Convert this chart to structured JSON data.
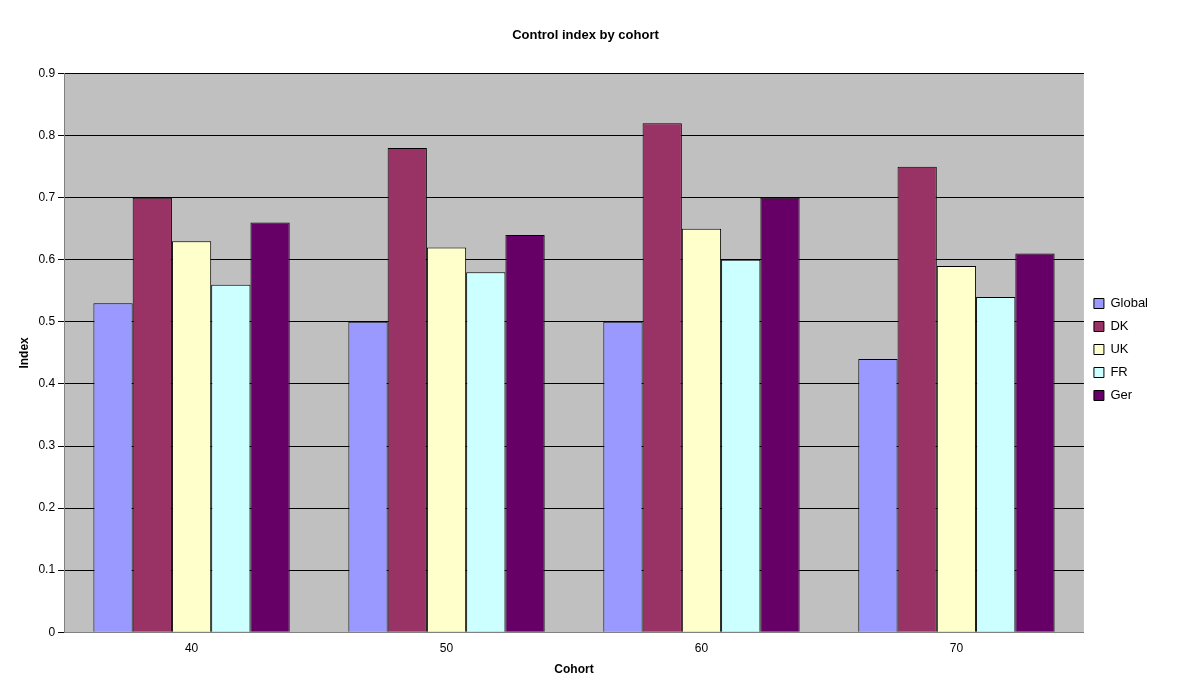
{
  "chart_data": {
    "type": "bar",
    "title": "Control index by cohort",
    "xlabel": "Cohort",
    "ylabel": "Index",
    "categories": [
      "40",
      "50",
      "60",
      "70"
    ],
    "series": [
      {
        "name": "Global",
        "color": "#9999ff",
        "values": [
          0.53,
          0.5,
          0.5,
          0.44
        ]
      },
      {
        "name": "DK",
        "color": "#993366",
        "values": [
          0.7,
          0.78,
          0.82,
          0.75
        ]
      },
      {
        "name": "UK",
        "color": "#ffffcc",
        "values": [
          0.63,
          0.62,
          0.65,
          0.59
        ]
      },
      {
        "name": "FR",
        "color": "#ccffff",
        "values": [
          0.56,
          0.58,
          0.6,
          0.54
        ]
      },
      {
        "name": "Ger",
        "color": "#660066",
        "values": [
          0.66,
          0.64,
          0.7,
          0.61
        ]
      }
    ],
    "ylim": [
      0,
      0.9
    ],
    "yticks": [
      0,
      0.1,
      0.2,
      0.3,
      0.4,
      0.5,
      0.6,
      0.7,
      0.8,
      0.9
    ],
    "grid": "y",
    "legend": "right"
  }
}
